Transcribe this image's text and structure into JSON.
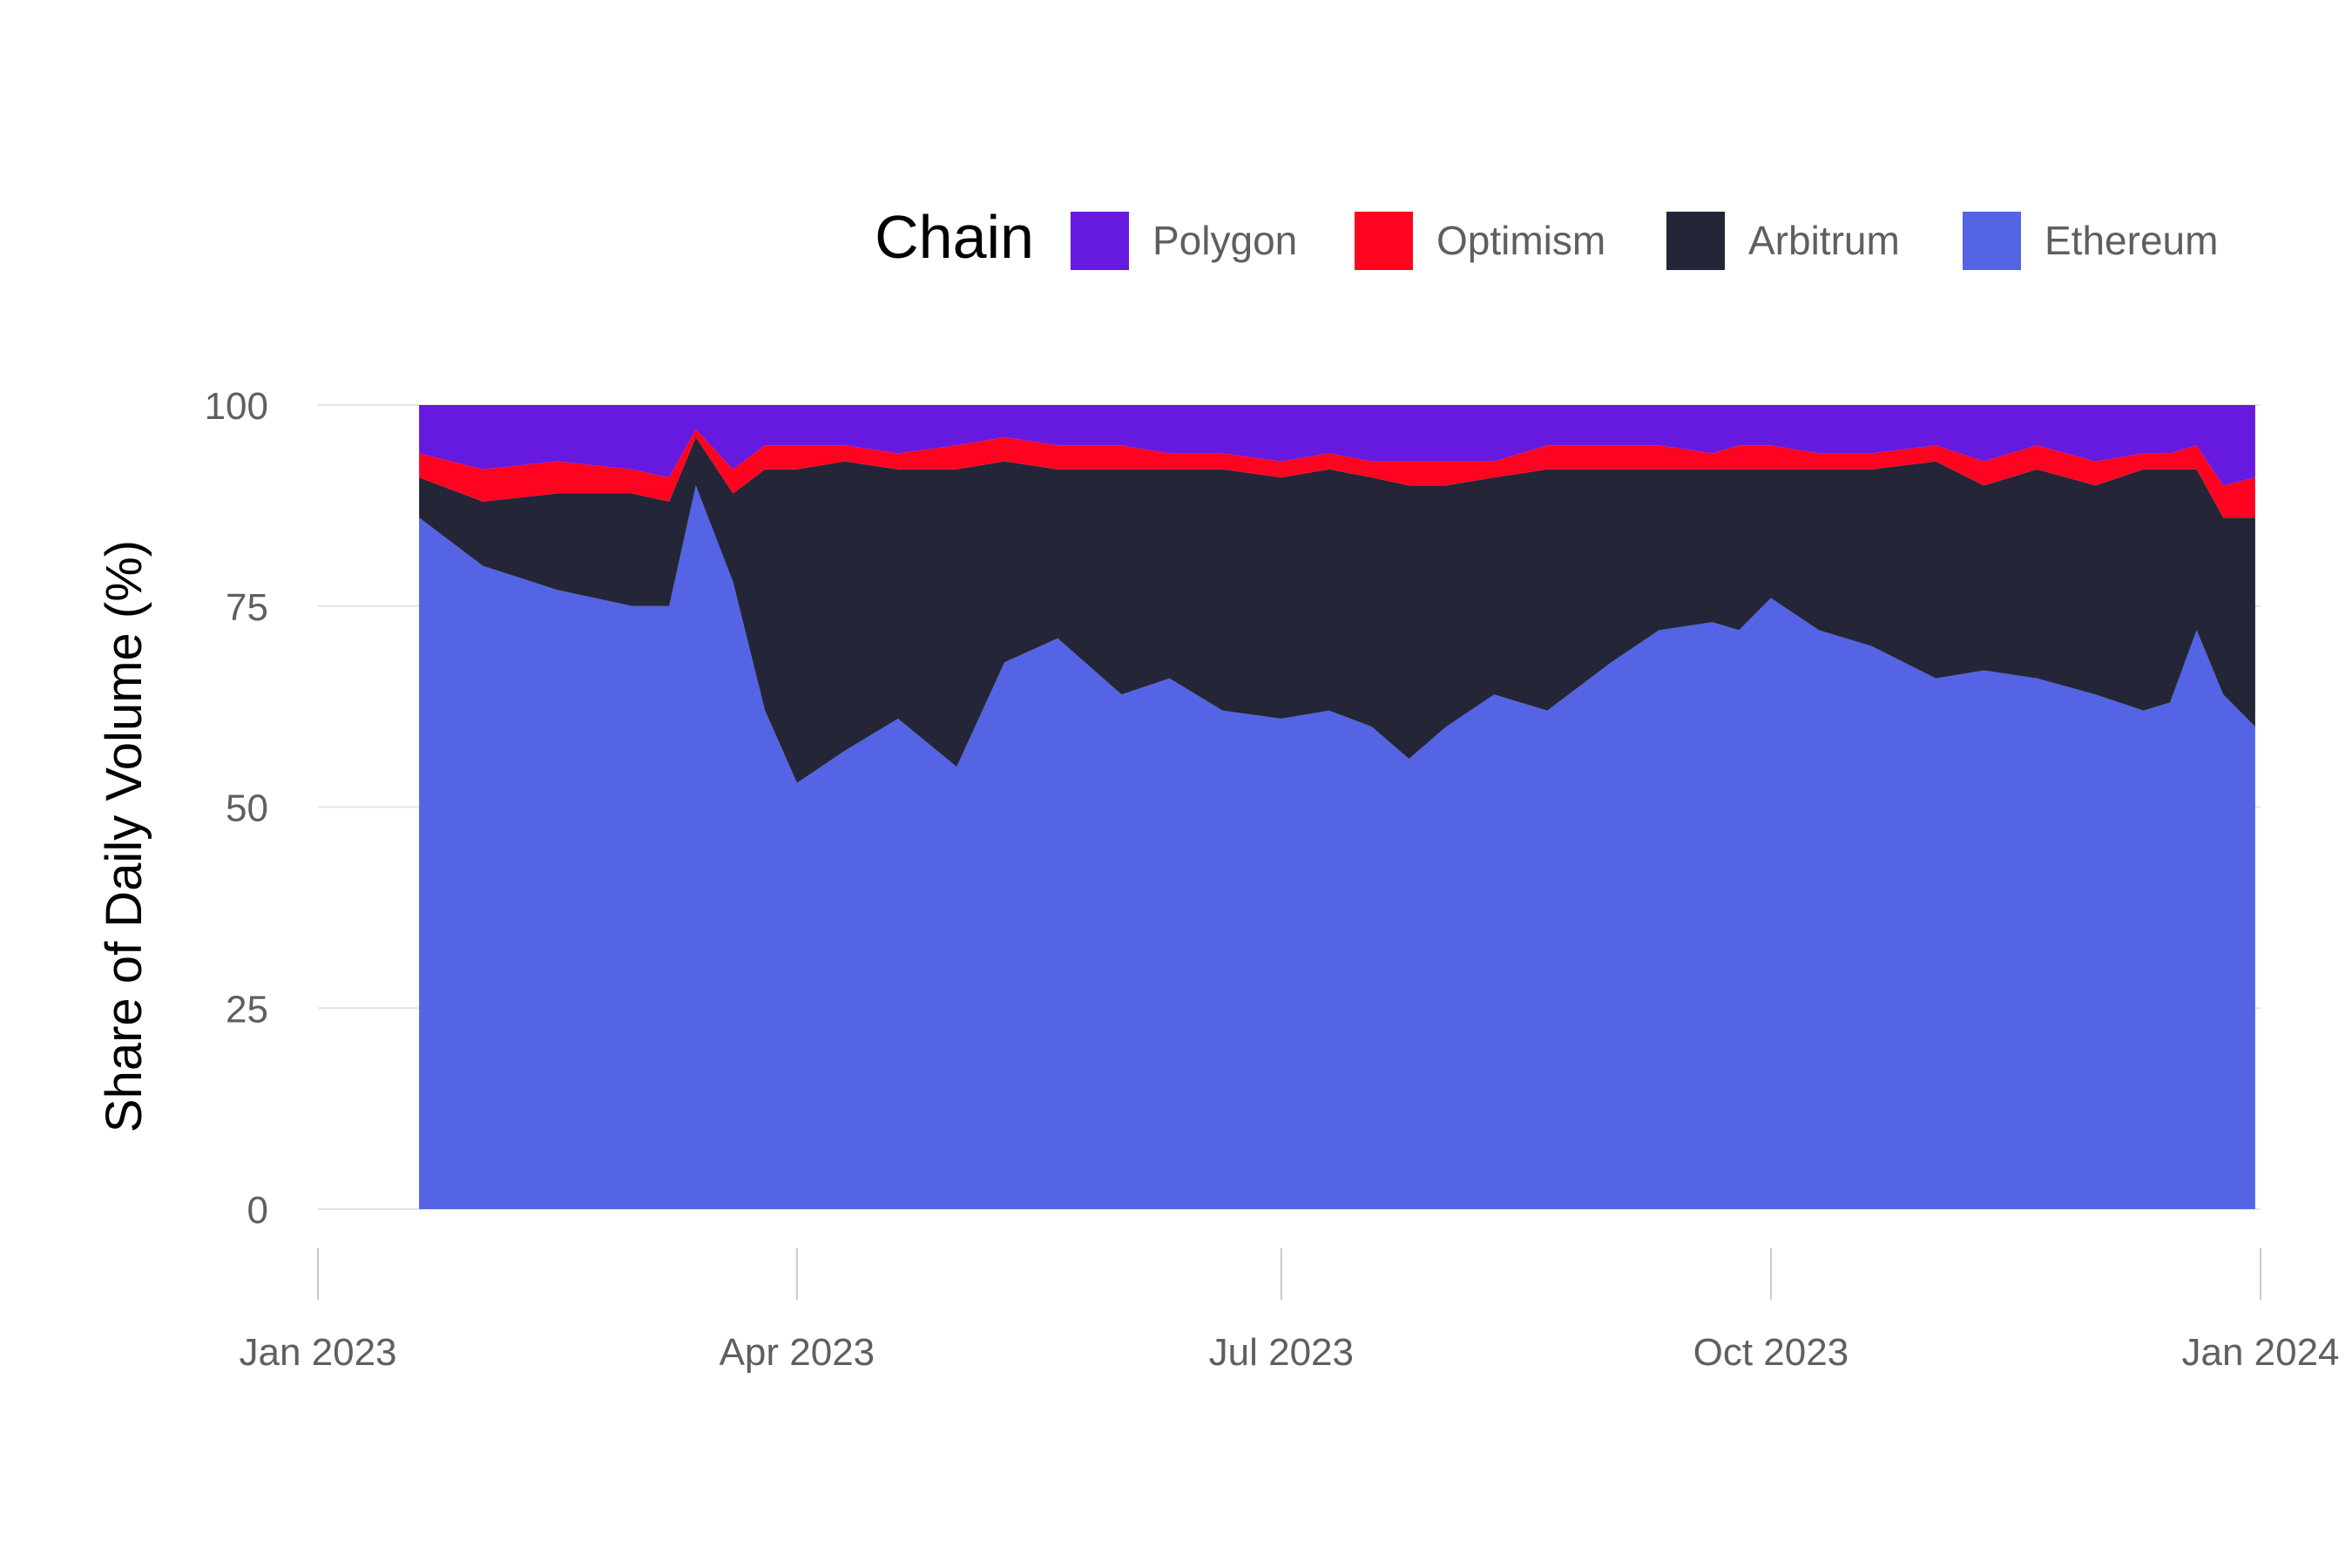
{
  "chart_data": {
    "type": "area",
    "stacked": true,
    "normalized": true,
    "title": "",
    "xlabel": "",
    "ylabel": "Share of Daily Volume (%)",
    "ylim": [
      0,
      100
    ],
    "yticks": [
      0,
      25,
      50,
      75,
      100
    ],
    "ytick_labels": [
      "0",
      "25",
      "50",
      "75",
      "100"
    ],
    "xlim": [
      "2023-01-01",
      "2024-01-01"
    ],
    "xticks": [
      "2023-01-01",
      "2023-04-01",
      "2023-07-01",
      "2023-10-01",
      "2024-01-01"
    ],
    "xtick_labels": [
      "Jan 2023",
      "Apr 2023",
      "Jul 2023",
      "Oct 2023",
      "Jan 2024"
    ],
    "grid": "horizontal",
    "legend": {
      "title": "Chain",
      "position": "top",
      "entries": [
        "Polygon",
        "Optimism",
        "Arbitrum",
        "Ethereum"
      ]
    },
    "colors": {
      "Polygon": "#6619df",
      "Optimism": "#ff0420",
      "Arbitrum": "#242638",
      "Ethereum": "#5464e4"
    },
    "x": [
      "2023-01-20",
      "2023-02-01",
      "2023-02-15",
      "2023-03-01",
      "2023-03-08",
      "2023-03-13",
      "2023-03-20",
      "2023-03-26",
      "2023-04-01",
      "2023-04-10",
      "2023-04-20",
      "2023-05-01",
      "2023-05-10",
      "2023-05-20",
      "2023-06-01",
      "2023-06-10",
      "2023-06-20",
      "2023-07-01",
      "2023-07-10",
      "2023-07-18",
      "2023-07-25",
      "2023-08-01",
      "2023-08-10",
      "2023-08-20",
      "2023-09-01",
      "2023-09-10",
      "2023-09-20",
      "2023-09-25",
      "2023-10-01",
      "2023-10-10",
      "2023-10-20",
      "2023-11-01",
      "2023-11-10",
      "2023-11-20",
      "2023-12-01",
      "2023-12-10",
      "2023-12-15",
      "2023-12-20",
      "2023-12-25",
      "2023-12-31"
    ],
    "series": [
      {
        "name": "Ethereum",
        "values": [
          86,
          80,
          77,
          75,
          75,
          90,
          78,
          62,
          53,
          57,
          61,
          55,
          68,
          71,
          64,
          66,
          62,
          61,
          62,
          60,
          56,
          60,
          64,
          62,
          68,
          72,
          73,
          72,
          76,
          72,
          70,
          66,
          67,
          66,
          64,
          62,
          63,
          72,
          64,
          60
        ]
      },
      {
        "name": "Arbitrum",
        "values": [
          5,
          8,
          12,
          14,
          13,
          6,
          11,
          30,
          39,
          36,
          31,
          37,
          25,
          21,
          28,
          26,
          30,
          30,
          30,
          31,
          34,
          30,
          27,
          30,
          24,
          20,
          19,
          20,
          16,
          20,
          22,
          27,
          23,
          26,
          26,
          30,
          29,
          20,
          22,
          26
        ]
      },
      {
        "name": "Optimism",
        "values": [
          3,
          4,
          4,
          3,
          3,
          1,
          3,
          3,
          3,
          2,
          2,
          3,
          3,
          3,
          3,
          2,
          2,
          2,
          2,
          2,
          3,
          3,
          2,
          3,
          3,
          3,
          2,
          3,
          3,
          2,
          2,
          2,
          3,
          3,
          3,
          2,
          2,
          3,
          4,
          5
        ]
      },
      {
        "name": "Polygon",
        "values": [
          6,
          8,
          7,
          8,
          9,
          3,
          8,
          5,
          5,
          5,
          6,
          5,
          4,
          5,
          5,
          6,
          6,
          7,
          6,
          7,
          7,
          7,
          7,
          5,
          5,
          5,
          6,
          5,
          5,
          6,
          6,
          5,
          7,
          5,
          7,
          6,
          6,
          5,
          10,
          9
        ]
      }
    ]
  }
}
